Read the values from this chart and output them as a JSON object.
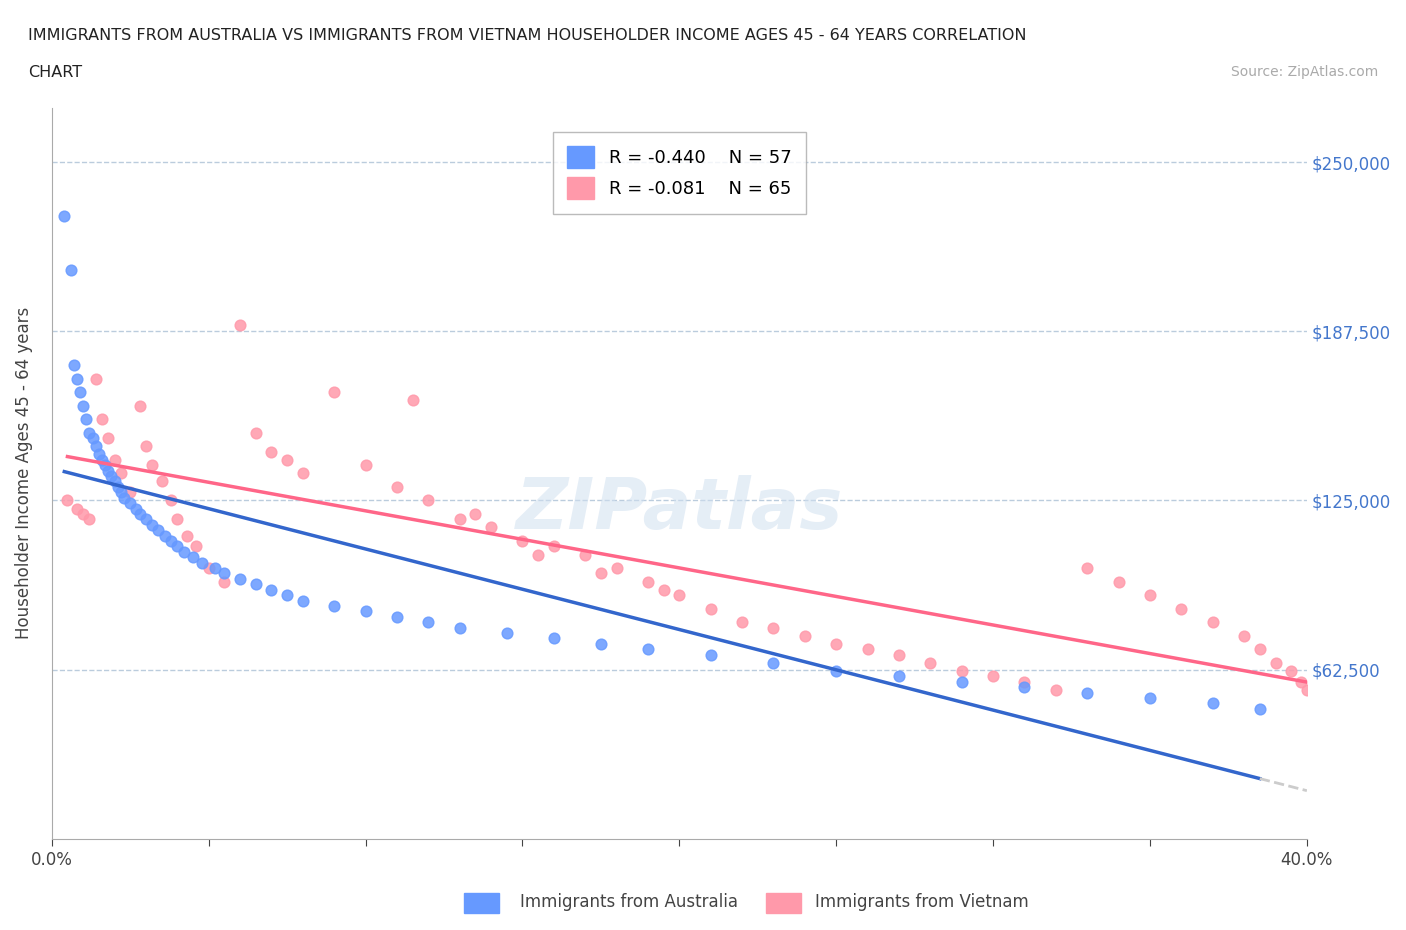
{
  "title_line1": "IMMIGRANTS FROM AUSTRALIA VS IMMIGRANTS FROM VIETNAM HOUSEHOLDER INCOME AGES 45 - 64 YEARS CORRELATION",
  "title_line2": "CHART",
  "source": "Source: ZipAtlas.com",
  "xlabel": "",
  "ylabel": "Householder Income Ages 45 - 64 years",
  "xlim": [
    0.0,
    0.4
  ],
  "ylim": [
    0,
    270000
  ],
  "yticks": [
    0,
    62500,
    125000,
    187500,
    250000
  ],
  "ytick_labels": [
    "",
    "$62,500",
    "$125,000",
    "$187,500",
    "$250,000"
  ],
  "xtick_labels": [
    "0.0%",
    "",
    "",
    "",
    "",
    "",
    "",
    "",
    "40.0%"
  ],
  "legend_r_australia": "R = -0.440",
  "legend_n_australia": "N = 57",
  "legend_r_vietnam": "R = -0.081",
  "legend_n_vietnam": "N = 65",
  "color_australia": "#6699ff",
  "color_vietnam": "#ff99aa",
  "color_trend_australia": "#3366cc",
  "color_trend_vietnam": "#ff6688",
  "color_trend_ext": "#cccccc",
  "watermark": "ZIPatlas",
  "australia_x": [
    0.004,
    0.006,
    0.007,
    0.008,
    0.009,
    0.01,
    0.011,
    0.012,
    0.013,
    0.014,
    0.015,
    0.016,
    0.017,
    0.018,
    0.019,
    0.02,
    0.021,
    0.022,
    0.023,
    0.025,
    0.027,
    0.028,
    0.03,
    0.032,
    0.034,
    0.036,
    0.038,
    0.04,
    0.042,
    0.045,
    0.048,
    0.052,
    0.055,
    0.06,
    0.065,
    0.07,
    0.075,
    0.08,
    0.09,
    0.1,
    0.11,
    0.12,
    0.13,
    0.145,
    0.16,
    0.175,
    0.19,
    0.21,
    0.23,
    0.25,
    0.27,
    0.29,
    0.31,
    0.33,
    0.35,
    0.37,
    0.385
  ],
  "australia_y": [
    230000,
    210000,
    175000,
    170000,
    165000,
    160000,
    155000,
    150000,
    148000,
    145000,
    142000,
    140000,
    138000,
    136000,
    134000,
    132000,
    130000,
    128000,
    126000,
    124000,
    122000,
    120000,
    118000,
    116000,
    114000,
    112000,
    110000,
    108000,
    106000,
    104000,
    102000,
    100000,
    98000,
    96000,
    94000,
    92000,
    90000,
    88000,
    86000,
    84000,
    82000,
    80000,
    78000,
    76000,
    74000,
    72000,
    70000,
    68000,
    65000,
    62000,
    60000,
    58000,
    56000,
    54000,
    52000,
    50000,
    48000
  ],
  "vietnam_x": [
    0.005,
    0.008,
    0.01,
    0.012,
    0.014,
    0.016,
    0.018,
    0.02,
    0.022,
    0.025,
    0.028,
    0.03,
    0.032,
    0.035,
    0.038,
    0.04,
    0.043,
    0.046,
    0.05,
    0.055,
    0.06,
    0.065,
    0.07,
    0.075,
    0.08,
    0.09,
    0.1,
    0.11,
    0.12,
    0.13,
    0.14,
    0.15,
    0.16,
    0.17,
    0.18,
    0.19,
    0.2,
    0.21,
    0.22,
    0.23,
    0.24,
    0.25,
    0.26,
    0.27,
    0.28,
    0.29,
    0.3,
    0.31,
    0.32,
    0.33,
    0.34,
    0.35,
    0.36,
    0.37,
    0.38,
    0.385,
    0.39,
    0.395,
    0.398,
    0.4,
    0.115,
    0.135,
    0.155,
    0.175,
    0.195
  ],
  "vietnam_y": [
    125000,
    122000,
    120000,
    118000,
    170000,
    155000,
    148000,
    140000,
    135000,
    128000,
    160000,
    145000,
    138000,
    132000,
    125000,
    118000,
    112000,
    108000,
    100000,
    95000,
    190000,
    150000,
    143000,
    140000,
    135000,
    165000,
    138000,
    130000,
    125000,
    118000,
    115000,
    110000,
    108000,
    105000,
    100000,
    95000,
    90000,
    85000,
    80000,
    78000,
    75000,
    72000,
    70000,
    68000,
    65000,
    62000,
    60000,
    58000,
    55000,
    100000,
    95000,
    90000,
    85000,
    80000,
    75000,
    70000,
    65000,
    62000,
    58000,
    55000,
    162000,
    120000,
    105000,
    98000,
    92000
  ]
}
